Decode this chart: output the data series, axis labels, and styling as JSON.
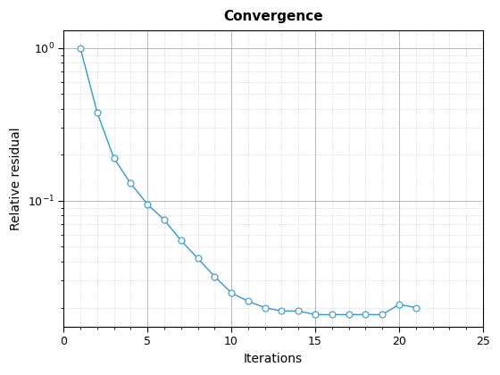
{
  "title": "Convergence",
  "xlabel": "Iterations",
  "ylabel": "Relative residual",
  "xlim": [
    0,
    25
  ],
  "ylim": [
    0.015,
    1.3
  ],
  "x": [
    1,
    2,
    3,
    4,
    5,
    6,
    7,
    8,
    9,
    10,
    11,
    12,
    13,
    14,
    15,
    16,
    17,
    18,
    19,
    20,
    21
  ],
  "y": [
    1.0,
    0.38,
    0.19,
    0.13,
    0.095,
    0.075,
    0.055,
    0.042,
    0.032,
    0.025,
    0.022,
    0.02,
    0.019,
    0.019,
    0.018,
    0.018,
    0.018,
    0.018,
    0.018,
    0.021,
    0.02
  ],
  "line_color": "#3399cc",
  "marker": "o",
  "marker_facecolor": "white",
  "marker_edgecolor": "#3399cc",
  "marker_size": 5,
  "linewidth": 1.0,
  "major_grid_color": "#b0b0b0",
  "major_grid_linestyle": "-",
  "minor_grid_color": "#cccccc",
  "minor_grid_linestyle": ":",
  "background_color": "#ffffff",
  "title_fontsize": 11,
  "label_fontsize": 10,
  "tick_fontsize": 9,
  "xticks": [
    0,
    5,
    10,
    15,
    20,
    25
  ]
}
